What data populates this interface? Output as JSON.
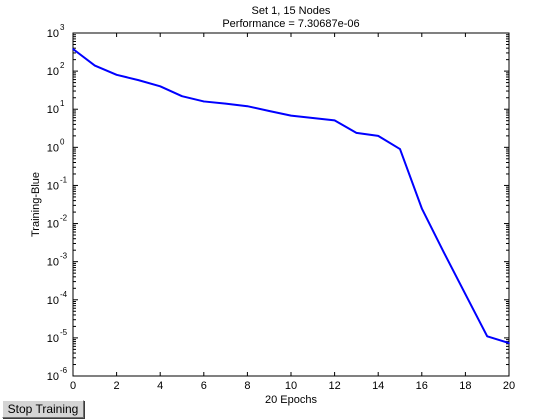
{
  "chart_data": {
    "type": "line",
    "title": [
      "Set 1, 15 Nodes",
      "Performance = 7.30687e-06"
    ],
    "xlabel": "20 Epochs",
    "ylabel": "Training-Blue",
    "xlim": [
      0,
      20
    ],
    "ylim": [
      1e-06,
      1000
    ],
    "yscale": "log",
    "grid": false,
    "xticks": [
      0,
      2,
      4,
      6,
      8,
      10,
      12,
      14,
      16,
      18,
      20
    ],
    "yticks": [
      {
        "base": "10",
        "exp": "-6",
        "value": 1e-06
      },
      {
        "base": "10",
        "exp": "-5",
        "value": 1e-05
      },
      {
        "base": "10",
        "exp": "-4",
        "value": 0.0001
      },
      {
        "base": "10",
        "exp": "-3",
        "value": 0.001
      },
      {
        "base": "10",
        "exp": "-2",
        "value": 0.01
      },
      {
        "base": "10",
        "exp": "-1",
        "value": 0.1
      },
      {
        "base": "10",
        "exp": "0",
        "value": 1
      },
      {
        "base": "10",
        "exp": "1",
        "value": 10
      },
      {
        "base": "10",
        "exp": "2",
        "value": 100
      },
      {
        "base": "10",
        "exp": "3",
        "value": 1000
      }
    ],
    "series": [
      {
        "color": "#0000ff",
        "x": [
          0,
          1,
          2,
          3,
          4,
          5,
          6,
          7,
          8,
          9,
          10,
          11,
          12,
          13,
          14,
          15,
          16,
          17,
          18,
          19,
          20
        ],
        "y": [
          380,
          140,
          80,
          58,
          40,
          22,
          16,
          14,
          12,
          9.0,
          6.8,
          5.9,
          5.1,
          2.4,
          2.0,
          0.9,
          0.025,
          0.0018,
          0.00014,
          1.1e-05,
          7.30687e-06
        ]
      }
    ]
  },
  "controls": {
    "stop_button_label": "Stop Training"
  }
}
